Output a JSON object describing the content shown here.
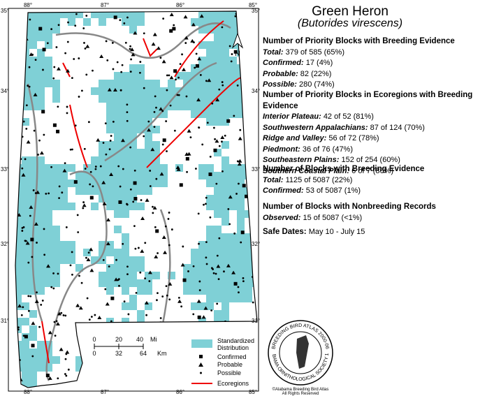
{
  "header": {
    "title": "Green Heron",
    "subtitle": "(Butorides virescens)"
  },
  "sections": [
    {
      "heading": "Number of Priority Blocks with Breeding Evidence",
      "rows": [
        {
          "label": "Total:",
          "value": "379 of 585 (65%)"
        },
        {
          "label": "Confirmed:",
          "value": "17 (4%)"
        },
        {
          "label": "Probable:",
          "value": "82 (22%)"
        },
        {
          "label": "Possible:",
          "value": "280 (74%)"
        }
      ]
    },
    {
      "heading": "Number of Priority Blocks in Ecoregions with Breeding Evidence",
      "rows": [
        {
          "label": "Interior Plateau:",
          "value": "42 of 52 (81%)"
        },
        {
          "label": "Southwestern Appalachians:",
          "value": "87 of 124 (70%)"
        },
        {
          "label": "Ridge and Valley:",
          "value": "56 of 72 (78%)"
        },
        {
          "label": "Piedmont:",
          "value": "36 of 76 (47%)"
        },
        {
          "label": "Southeastern Plains:",
          "value": "152 of 254 (60%)"
        },
        {
          "label": "Southern Coastal Plain:",
          "value": "6 of 7 (86%)"
        }
      ]
    },
    {
      "heading": "Number of Blocks with Breeding Evidence",
      "rows": [
        {
          "label": "Total:",
          "value": "1125 of 5087 (22%)"
        },
        {
          "label": "Confirmed:",
          "value": "53 of 5087 (1%)"
        }
      ]
    },
    {
      "heading": "Number of Blocks with Nonbreeding Records",
      "rows": [
        {
          "label": "Observed:",
          "value": "15 of 5087 (<1%)"
        }
      ]
    }
  ],
  "safe_dates": {
    "label": "Safe Dates:",
    "value": "May 10 - July 15"
  },
  "map": {
    "lon_labels": [
      "88°",
      "87°",
      "86°",
      "85°"
    ],
    "lat_labels": [
      "35°",
      "34°",
      "33°",
      "32°",
      "31°"
    ],
    "north": "N",
    "scale": {
      "mi": [
        "0",
        "20",
        "40",
        "Mi"
      ],
      "km": [
        "0",
        "32",
        "64",
        "Km"
      ]
    }
  },
  "legend": {
    "distribution": [
      "Standardized",
      "Distribution"
    ],
    "confirmed": "Confirmed",
    "probable": "Probable",
    "possible": "Possible",
    "ecoregions": "Ecoregions"
  },
  "logo": {
    "ring_top": "BREEDING BIRD ATLAS 2000-06",
    "ring_bottom": "ALABAMA ORNITHOLOGICAL SOCIETY 1952",
    "credit": "©Alabama Breeding Bird Atlas",
    "rights": "All Rights Reserved"
  }
}
